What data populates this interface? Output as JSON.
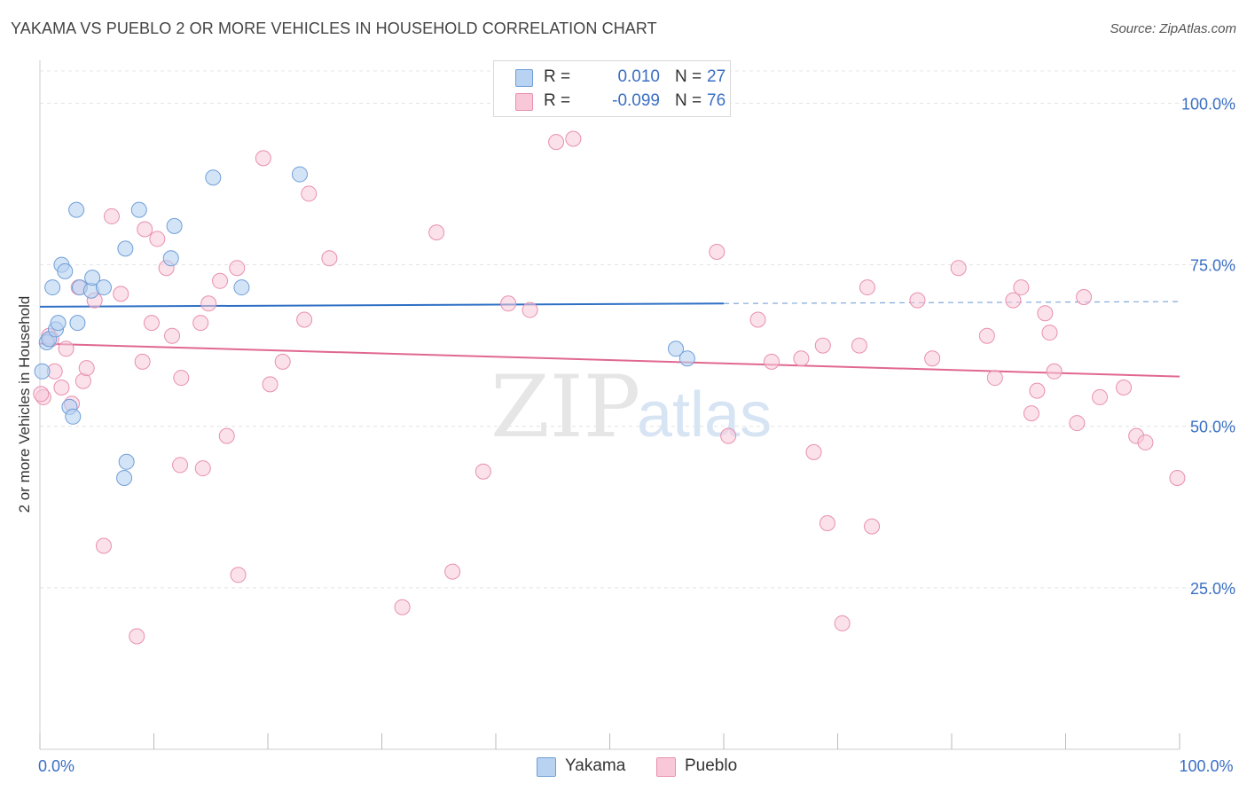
{
  "title": "YAKAMA VS PUEBLO 2 OR MORE VEHICLES IN HOUSEHOLD CORRELATION CHART",
  "source": "Source: ZipAtlas.com",
  "watermark": {
    "zip": "ZIP",
    "atlas": "atlas"
  },
  "legend": {
    "rows": [
      {
        "r_label": "R =",
        "r_value": "0.010",
        "n_label": "N =",
        "n_value": "27"
      },
      {
        "r_label": "R =",
        "r_value": "-0.099",
        "n_label": "N =",
        "n_value": "76"
      }
    ]
  },
  "bottom_legend": {
    "yakama": "Yakama",
    "pueblo": "Pueblo"
  },
  "colors": {
    "yakama_fill": "#b8d2f2",
    "yakama_stroke": "#6f9fd8",
    "yakama_line": "#2e6fc5",
    "pueblo_fill": "#f8c8d8",
    "pueblo_stroke": "#e890b0",
    "pueblo_line": "#e06890",
    "axis_label": "#3a6fc4",
    "grid": "#e4e4e4"
  },
  "chart_data": {
    "type": "scatter",
    "title": "YAKAMA VS PUEBLO 2 OR MORE VEHICLES IN HOUSEHOLD CORRELATION CHART",
    "xlabel": "",
    "ylabel": "2 or more Vehicles in Household",
    "xlim": [
      0,
      100
    ],
    "ylim": [
      0,
      105
    ],
    "x_tick_labels": [
      {
        "value": 0,
        "label": "0.0%"
      },
      {
        "value": 100,
        "label": "100.0%"
      }
    ],
    "y_tick_labels": [
      {
        "value": 25,
        "label": "25.0%"
      },
      {
        "value": 50,
        "label": "50.0%"
      },
      {
        "value": 75,
        "label": "75.0%"
      },
      {
        "value": 100,
        "label": "100.0%"
      }
    ],
    "series": [
      {
        "name": "Yakama",
        "r": 0.01,
        "n": 27,
        "trend": {
          "x0": 0,
          "y0": 68.5,
          "x1": 60,
          "y1": 69.0,
          "dash_x1": 100,
          "dash_y1": 69.3
        },
        "points": [
          [
            0.2,
            58.5
          ],
          [
            0.6,
            63
          ],
          [
            0.8,
            63.5
          ],
          [
            1.1,
            71.5
          ],
          [
            1.4,
            65
          ],
          [
            1.6,
            66
          ],
          [
            1.9,
            75
          ],
          [
            2.2,
            74
          ],
          [
            2.6,
            53
          ],
          [
            2.9,
            51.5
          ],
          [
            3.2,
            83.5
          ],
          [
            3.3,
            66
          ],
          [
            3.5,
            71.5
          ],
          [
            4.5,
            71
          ],
          [
            4.6,
            73
          ],
          [
            5.6,
            71.5
          ],
          [
            7.5,
            77.5
          ],
          [
            8.7,
            83.5
          ],
          [
            7.6,
            44.5
          ],
          [
            7.4,
            42
          ],
          [
            11.8,
            81
          ],
          [
            11.5,
            76
          ],
          [
            15.2,
            88.5
          ],
          [
            17.7,
            71.5
          ],
          [
            22.8,
            89
          ],
          [
            55.8,
            62
          ],
          [
            56.8,
            60.5
          ]
        ]
      },
      {
        "name": "Pueblo",
        "r": -0.099,
        "n": 76,
        "trend": {
          "x0": 0,
          "y0": 62.8,
          "x1": 100,
          "y1": 57.7
        },
        "points": [
          [
            0.3,
            54.5
          ],
          [
            0.8,
            64
          ],
          [
            1.3,
            58.5
          ],
          [
            1.9,
            56
          ],
          [
            2.3,
            62
          ],
          [
            2.8,
            53.5
          ],
          [
            3.4,
            71.5
          ],
          [
            3.8,
            57
          ],
          [
            4.1,
            59
          ],
          [
            4.8,
            69.5
          ],
          [
            5.6,
            31.5
          ],
          [
            6.3,
            82.5
          ],
          [
            7.1,
            70.5
          ],
          [
            8.5,
            17.5
          ],
          [
            9.0,
            60
          ],
          [
            9.2,
            80.5
          ],
          [
            9.8,
            66
          ],
          [
            10.3,
            79
          ],
          [
            11.1,
            74.5
          ],
          [
            11.6,
            64
          ],
          [
            12.3,
            44
          ],
          [
            12.4,
            57.5
          ],
          [
            14.1,
            66
          ],
          [
            14.3,
            43.5
          ],
          [
            14.8,
            69
          ],
          [
            15.8,
            72.5
          ],
          [
            16.4,
            48.5
          ],
          [
            17.3,
            74.5
          ],
          [
            17.4,
            27
          ],
          [
            19.6,
            91.5
          ],
          [
            20.2,
            56.5
          ],
          [
            21.3,
            60
          ],
          [
            23.2,
            66.5
          ],
          [
            23.6,
            86
          ],
          [
            25.4,
            76
          ],
          [
            31.8,
            22
          ],
          [
            34.8,
            80
          ],
          [
            36.2,
            27.5
          ],
          [
            38.9,
            43
          ],
          [
            41.1,
            69
          ],
          [
            43.0,
            68
          ],
          [
            45.3,
            94
          ],
          [
            46.8,
            94.5
          ],
          [
            59.4,
            77
          ],
          [
            60.4,
            48.5
          ],
          [
            63.0,
            66.5
          ],
          [
            64.2,
            60
          ],
          [
            66.8,
            60.5
          ],
          [
            67.9,
            46
          ],
          [
            68.7,
            62.5
          ],
          [
            69.1,
            35
          ],
          [
            70.4,
            19.5
          ],
          [
            71.9,
            62.5
          ],
          [
            72.6,
            71.5
          ],
          [
            73.0,
            34.5
          ],
          [
            77.0,
            69.5
          ],
          [
            78.3,
            60.5
          ],
          [
            80.6,
            74.5
          ],
          [
            83.1,
            64
          ],
          [
            83.8,
            57.5
          ],
          [
            85.4,
            69.5
          ],
          [
            86.1,
            71.5
          ],
          [
            87.0,
            52
          ],
          [
            87.5,
            55.5
          ],
          [
            88.2,
            67.5
          ],
          [
            88.6,
            64.5
          ],
          [
            89.0,
            58.5
          ],
          [
            91.6,
            70
          ],
          [
            91.0,
            50.5
          ],
          [
            93.0,
            54.5
          ],
          [
            95.1,
            56
          ],
          [
            96.2,
            48.5
          ],
          [
            97.0,
            47.5
          ],
          [
            99.8,
            42
          ],
          [
            0.1,
            55
          ],
          [
            1.0,
            63.5
          ]
        ]
      }
    ]
  }
}
